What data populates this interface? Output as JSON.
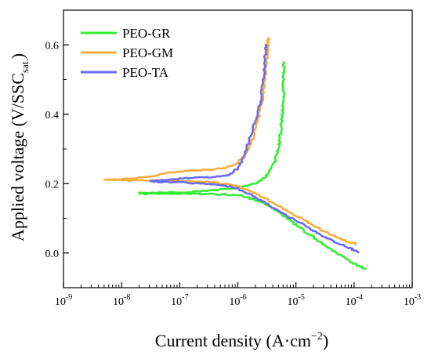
{
  "chart_data": {
    "type": "line",
    "xlabel": {
      "main": "Current density (A·cm",
      "sup": "−2",
      "tail": ")"
    },
    "ylabel": {
      "main": "Applied voltage (V/SSC",
      "sub": "sat.",
      "tail": ")"
    },
    "x_scale": "log",
    "xlim": [
      1e-09,
      0.001
    ],
    "ylim": [
      -0.1,
      0.7
    ],
    "x_ticks": [
      {
        "value": 1e-09,
        "base": "10",
        "exp": "-9"
      },
      {
        "value": 1e-08,
        "base": "10",
        "exp": "-8"
      },
      {
        "value": 1e-07,
        "base": "10",
        "exp": "-7"
      },
      {
        "value": 1e-06,
        "base": "10",
        "exp": "-6"
      },
      {
        "value": 1e-05,
        "base": "10",
        "exp": "-5"
      },
      {
        "value": 0.0001,
        "base": "10",
        "exp": "-4"
      },
      {
        "value": 0.001,
        "base": "10",
        "exp": "-3"
      }
    ],
    "y_ticks": [
      {
        "value": 0.0,
        "label": "0.0"
      },
      {
        "value": 0.2,
        "label": "0.2"
      },
      {
        "value": 0.4,
        "label": "0.4"
      },
      {
        "value": 0.6,
        "label": "0.6"
      }
    ],
    "grid": false,
    "legend_position": "top-left",
    "series": [
      {
        "name": "PEO-GR",
        "color": "#33ee33",
        "points": [
          [
            0.00015,
            -0.045
          ],
          [
            0.0001,
            -0.03
          ],
          [
            7e-05,
            -0.015
          ],
          [
            4.5e-05,
            0.005
          ],
          [
            3e-05,
            0.025
          ],
          [
            2e-05,
            0.045
          ],
          [
            1.3e-05,
            0.068
          ],
          [
            8.5e-06,
            0.09
          ],
          [
            6e-06,
            0.11
          ],
          [
            4e-06,
            0.13
          ],
          [
            2.7e-06,
            0.145
          ],
          [
            1.8e-06,
            0.155
          ],
          [
            1.2e-06,
            0.165
          ],
          [
            7e-07,
            0.168
          ],
          [
            3.5e-07,
            0.17
          ],
          [
            1.5e-07,
            0.171
          ],
          [
            6e-08,
            0.171
          ],
          [
            2.5e-08,
            0.171
          ],
          [
            2e-08,
            0.172
          ],
          [
            6e-08,
            0.174
          ],
          [
            1.5e-07,
            0.176
          ],
          [
            3.5e-07,
            0.18
          ],
          [
            7e-07,
            0.185
          ],
          [
            1.2e-06,
            0.19
          ],
          [
            2e-06,
            0.2
          ],
          [
            3e-06,
            0.22
          ],
          [
            4e-06,
            0.25
          ],
          [
            4.8e-06,
            0.29
          ],
          [
            5.3e-06,
            0.33
          ],
          [
            5.6e-06,
            0.37
          ],
          [
            5.8e-06,
            0.4
          ],
          [
            6e-06,
            0.44
          ],
          [
            6.1e-06,
            0.48
          ],
          [
            6.3e-06,
            0.52
          ],
          [
            6.2e-06,
            0.55
          ]
        ]
      },
      {
        "name": "PEO-GM",
        "color": "#f5ad3d",
        "points": [
          [
            0.00011,
            0.025
          ],
          [
            7e-05,
            0.035
          ],
          [
            4.5e-05,
            0.05
          ],
          [
            3e-05,
            0.063
          ],
          [
            2e-05,
            0.08
          ],
          [
            1.2e-05,
            0.1
          ],
          [
            7.5e-06,
            0.12
          ],
          [
            4.5e-06,
            0.14
          ],
          [
            2.8e-06,
            0.16
          ],
          [
            1.7e-06,
            0.178
          ],
          [
            1e-06,
            0.192
          ],
          [
            6e-07,
            0.2
          ],
          [
            3e-07,
            0.205
          ],
          [
            1e-07,
            0.208
          ],
          [
            3e-08,
            0.209
          ],
          [
            1e-08,
            0.21
          ],
          [
            5e-09,
            0.21
          ],
          [
            1e-08,
            0.212
          ],
          [
            3e-08,
            0.22
          ],
          [
            7e-08,
            0.232
          ],
          [
            1.5e-07,
            0.238
          ],
          [
            3e-07,
            0.24
          ],
          [
            6e-07,
            0.245
          ],
          [
            1e-06,
            0.26
          ],
          [
            1.4e-06,
            0.29
          ],
          [
            1.8e-06,
            0.33
          ],
          [
            2.2e-06,
            0.38
          ],
          [
            2.6e-06,
            0.44
          ],
          [
            2.9e-06,
            0.5
          ],
          [
            3.1e-06,
            0.55
          ],
          [
            3.3e-06,
            0.6
          ],
          [
            3.4e-06,
            0.62
          ]
        ]
      },
      {
        "name": "PEO-TA",
        "color": "#6b6bef",
        "points": [
          [
            0.00012,
            0.003
          ],
          [
            8e-05,
            0.015
          ],
          [
            5e-05,
            0.03
          ],
          [
            3e-05,
            0.048
          ],
          [
            1.8e-05,
            0.068
          ],
          [
            1.1e-05,
            0.09
          ],
          [
            6.5e-06,
            0.11
          ],
          [
            4e-06,
            0.13
          ],
          [
            2.5e-06,
            0.15
          ],
          [
            1.6e-06,
            0.168
          ],
          [
            1e-06,
            0.185
          ],
          [
            6e-07,
            0.195
          ],
          [
            3e-07,
            0.2
          ],
          [
            1.2e-07,
            0.203
          ],
          [
            5e-08,
            0.205
          ],
          [
            3e-08,
            0.207
          ],
          [
            5e-08,
            0.21
          ],
          [
            1e-07,
            0.214
          ],
          [
            2e-07,
            0.217
          ],
          [
            4e-07,
            0.22
          ],
          [
            7e-07,
            0.225
          ],
          [
            1e-06,
            0.245
          ],
          [
            1.3e-06,
            0.28
          ],
          [
            1.6e-06,
            0.33
          ],
          [
            2e-06,
            0.38
          ],
          [
            2.4e-06,
            0.43
          ],
          [
            2.7e-06,
            0.48
          ],
          [
            2.9e-06,
            0.53
          ],
          [
            3e-06,
            0.57
          ],
          [
            3e-06,
            0.6
          ]
        ]
      }
    ]
  }
}
